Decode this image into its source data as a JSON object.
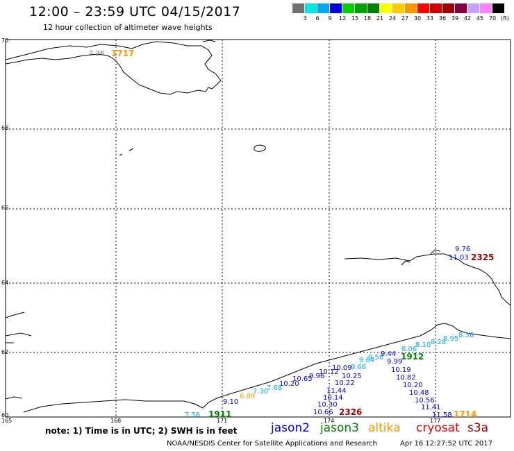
{
  "header": {
    "title": "12:00 – 23:59 UTC 04/15/2017",
    "subtitle": "12 hour collection of altimeter wave heights"
  },
  "legend_scale": {
    "labels": [
      "3",
      "6",
      "9",
      "12",
      "15",
      "18",
      "21",
      "24",
      "27",
      "30",
      "33",
      "36",
      "39",
      "42",
      "45",
      "70",
      "(ft)"
    ],
    "colors": [
      "#707070",
      "#00e5e5",
      "#00a8f0",
      "#0000e0",
      "#00d000",
      "#00a000",
      "#008000",
      "#ffff00",
      "#ffc800",
      "#ff9600",
      "#ff0000",
      "#d00000",
      "#a00000",
      "#800040",
      "#c8a0ff",
      "#ff80ff",
      "#000000"
    ]
  },
  "map": {
    "lat_labels": [
      "70",
      "68",
      "66",
      "64",
      "62",
      "60"
    ],
    "lon_labels": [
      "165",
      "168",
      "171",
      "174",
      "177"
    ],
    "points_jason2": [
      {
        "text": "9.10"
      },
      {
        "text": "10.20"
      },
      {
        "text": "10.65"
      },
      {
        "text": "9.96"
      },
      {
        "text": "10.12"
      },
      {
        "text": "10.09"
      },
      {
        "text": "10.25"
      },
      {
        "text": "10.22"
      },
      {
        "text": "11.44"
      },
      {
        "text": "10.14"
      },
      {
        "text": "10.30"
      },
      {
        "text": "10.66"
      },
      {
        "text": "9.44"
      },
      {
        "text": "9.99"
      },
      {
        "text": "10.19"
      },
      {
        "text": "10.82"
      },
      {
        "text": "10.20"
      },
      {
        "text": "10.48"
      },
      {
        "text": "10.56"
      },
      {
        "text": "11.41"
      },
      {
        "text": "11.58"
      },
      {
        "text": "9.76"
      },
      {
        "text": "11.03"
      }
    ],
    "points_cyan": [
      {
        "text": "7.30"
      },
      {
        "text": "7.68"
      },
      {
        "text": "9.64"
      },
      {
        "text": "9.66"
      },
      {
        "text": "8.06"
      },
      {
        "text": "8.10"
      },
      {
        "text": "8.28"
      },
      {
        "text": "8.95"
      },
      {
        "text": "8.36"
      },
      {
        "text": "7.56"
      },
      {
        "text": "9.56"
      }
    ],
    "points_other": [
      {
        "text": "2.26",
        "color": "#707070"
      },
      {
        "text": "6.89",
        "color": "#ff9600"
      }
    ],
    "pass_labels": [
      {
        "text": "1717",
        "color": "#ff9600"
      },
      {
        "text": "1911",
        "color": "#008000"
      },
      {
        "text": "2326",
        "color": "#a00000"
      },
      {
        "text": "1912",
        "color": "#008000"
      },
      {
        "text": "2325",
        "color": "#a00000"
      },
      {
        "text": "1714",
        "color": "#ff9600"
      }
    ]
  },
  "footer": {
    "note": "note: 1) Time is in UTC; 2) SWH is in feet",
    "satellites": [
      {
        "name": "jason2",
        "color": "#0000e0"
      },
      {
        "name": "jason3",
        "color": "#008000"
      },
      {
        "name": "altika",
        "color": "#ff9600"
      },
      {
        "name": "cryosat",
        "color": "#e00000"
      },
      {
        "name": "s3a",
        "color": "#a00000"
      }
    ],
    "credit": "NOAA/NESDIS Center for Satellite Applications and Research",
    "timestamp": "Apr 16 12:27:52 UTC 2017"
  }
}
